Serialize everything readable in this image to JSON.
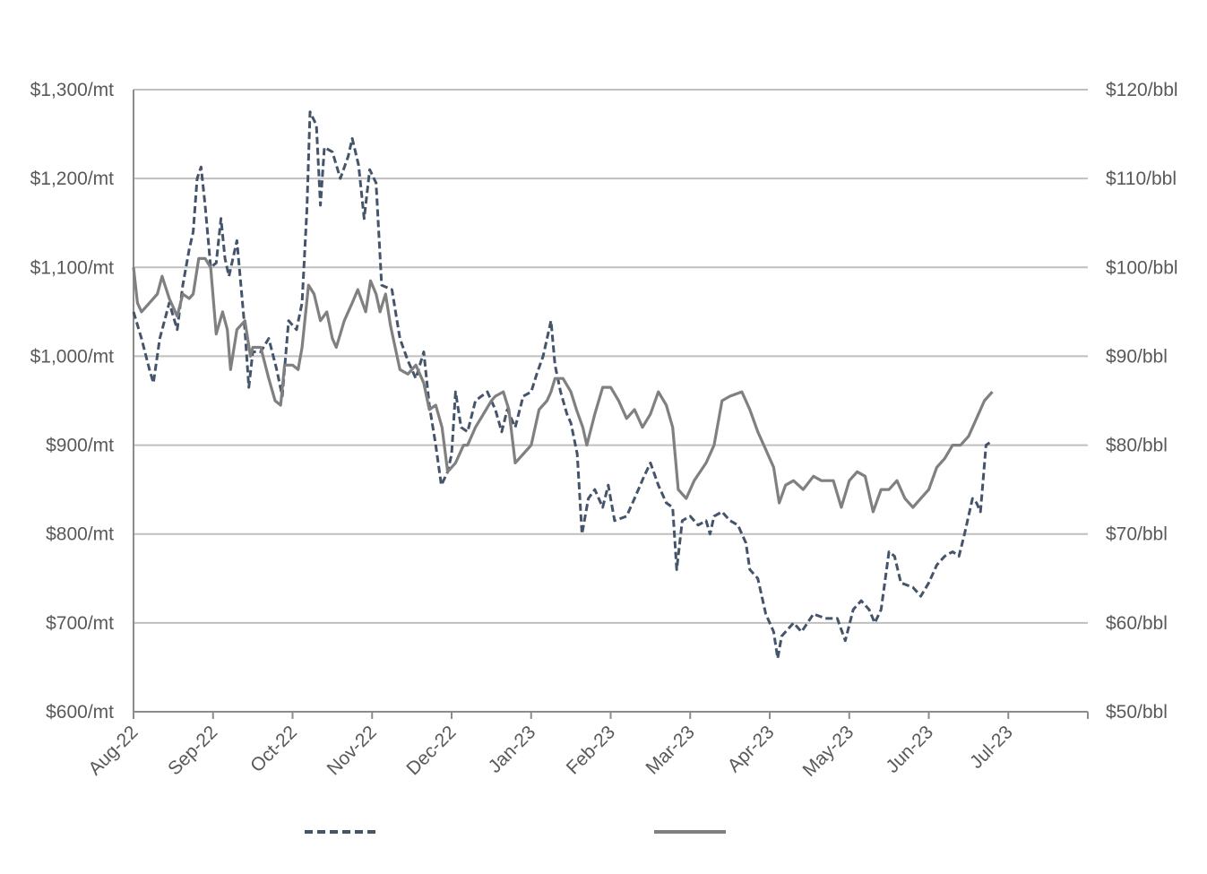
{
  "chart_data": {
    "type": "line",
    "title": "",
    "xlabel": "",
    "ylabel_left": "",
    "ylabel_right": "",
    "grid": true,
    "legend_position": "bottom",
    "x_ticks": [
      "Aug-22",
      "Sep-22",
      "Oct-22",
      "Nov-22",
      "Dec-22",
      "Jan-23",
      "Feb-23",
      "Mar-23",
      "Apr-23",
      "May-23",
      "Jun-23",
      "Jul-23"
    ],
    "x_range": [
      0,
      12
    ],
    "y_left": {
      "ticks": [
        "$600/mt",
        "$700/mt",
        "$800/mt",
        "$900/mt",
        "$1,000/mt",
        "$1,100/mt",
        "$1,200/mt",
        "$1,300/mt"
      ],
      "range": [
        600,
        1300
      ]
    },
    "y_right": {
      "ticks": [
        "$50/bbl",
        "$60/bbl",
        "$70/bbl",
        "$80/bbl",
        "$90/bbl",
        "$100/bbl",
        "$110/bbl",
        "$120/bbl"
      ],
      "range": [
        50,
        120
      ]
    },
    "series": [
      {
        "axis": "left",
        "style": "dashed",
        "color": "#44546a",
        "points": [
          [
            0.0,
            1050
          ],
          [
            0.1,
            1020
          ],
          [
            0.2,
            985
          ],
          [
            0.25,
            970
          ],
          [
            0.33,
            1020
          ],
          [
            0.45,
            1060
          ],
          [
            0.55,
            1030
          ],
          [
            0.62,
            1080
          ],
          [
            0.7,
            1120
          ],
          [
            0.75,
            1140
          ],
          [
            0.8,
            1200
          ],
          [
            0.85,
            1213
          ],
          [
            0.9,
            1170
          ],
          [
            0.97,
            1100
          ],
          [
            1.04,
            1105
          ],
          [
            1.1,
            1155
          ],
          [
            1.15,
            1110
          ],
          [
            1.2,
            1090
          ],
          [
            1.3,
            1130
          ],
          [
            1.4,
            1030
          ],
          [
            1.45,
            965
          ],
          [
            1.5,
            1005
          ],
          [
            1.6,
            1005
          ],
          [
            1.7,
            1020
          ],
          [
            1.8,
            985
          ],
          [
            1.87,
            955
          ],
          [
            1.95,
            1040
          ],
          [
            2.05,
            1030
          ],
          [
            2.12,
            1060
          ],
          [
            2.18,
            1165
          ],
          [
            2.22,
            1275
          ],
          [
            2.3,
            1260
          ],
          [
            2.35,
            1170
          ],
          [
            2.4,
            1235
          ],
          [
            2.5,
            1230
          ],
          [
            2.6,
            1200
          ],
          [
            2.7,
            1225
          ],
          [
            2.75,
            1245
          ],
          [
            2.83,
            1215
          ],
          [
            2.9,
            1155
          ],
          [
            2.97,
            1210
          ],
          [
            3.05,
            1195
          ],
          [
            3.12,
            1080
          ],
          [
            3.25,
            1075
          ],
          [
            3.35,
            1020
          ],
          [
            3.45,
            995
          ],
          [
            3.55,
            975
          ],
          [
            3.65,
            1005
          ],
          [
            3.72,
            945
          ],
          [
            3.8,
            900
          ],
          [
            3.87,
            855
          ],
          [
            3.95,
            870
          ],
          [
            4.0,
            890
          ],
          [
            4.05,
            960
          ],
          [
            4.12,
            920
          ],
          [
            4.2,
            915
          ],
          [
            4.3,
            950
          ],
          [
            4.45,
            960
          ],
          [
            4.55,
            940
          ],
          [
            4.63,
            915
          ],
          [
            4.7,
            940
          ],
          [
            4.8,
            920
          ],
          [
            4.9,
            955
          ],
          [
            5.0,
            960
          ],
          [
            5.07,
            980
          ],
          [
            5.15,
            1000
          ],
          [
            5.25,
            1040
          ],
          [
            5.3,
            990
          ],
          [
            5.37,
            960
          ],
          [
            5.45,
            935
          ],
          [
            5.5,
            925
          ],
          [
            5.58,
            890
          ],
          [
            5.64,
            800
          ],
          [
            5.72,
            840
          ],
          [
            5.8,
            850
          ],
          [
            5.9,
            830
          ],
          [
            5.97,
            855
          ],
          [
            6.05,
            815
          ],
          [
            6.2,
            820
          ],
          [
            6.3,
            840
          ],
          [
            6.42,
            865
          ],
          [
            6.5,
            880
          ],
          [
            6.6,
            855
          ],
          [
            6.7,
            835
          ],
          [
            6.78,
            830
          ],
          [
            6.83,
            760
          ],
          [
            6.9,
            815
          ],
          [
            7.0,
            820
          ],
          [
            7.1,
            810
          ],
          [
            7.2,
            815
          ],
          [
            7.25,
            800
          ],
          [
            7.3,
            820
          ],
          [
            7.4,
            825
          ],
          [
            7.5,
            815
          ],
          [
            7.6,
            810
          ],
          [
            7.7,
            790
          ],
          [
            7.75,
            760
          ],
          [
            7.85,
            750
          ],
          [
            7.95,
            710
          ],
          [
            8.05,
            690
          ],
          [
            8.1,
            660
          ],
          [
            8.15,
            685
          ],
          [
            8.3,
            700
          ],
          [
            8.4,
            690
          ],
          [
            8.55,
            710
          ],
          [
            8.7,
            705
          ],
          [
            8.85,
            705
          ],
          [
            8.95,
            680
          ],
          [
            9.05,
            715
          ],
          [
            9.15,
            725
          ],
          [
            9.25,
            715
          ],
          [
            9.32,
            700
          ],
          [
            9.4,
            715
          ],
          [
            9.5,
            780
          ],
          [
            9.57,
            775
          ],
          [
            9.65,
            745
          ],
          [
            9.8,
            740
          ],
          [
            9.9,
            730
          ],
          [
            10.0,
            745
          ],
          [
            10.1,
            765
          ],
          [
            10.2,
            775
          ],
          [
            10.3,
            780
          ],
          [
            10.38,
            775
          ],
          [
            10.45,
            800
          ],
          [
            10.55,
            840
          ],
          [
            10.6,
            835
          ],
          [
            10.65,
            825
          ],
          [
            10.72,
            900
          ],
          [
            10.8,
            905
          ]
        ]
      },
      {
        "axis": "right",
        "style": "solid",
        "color": "#808080",
        "points": [
          [
            0.0,
            100
          ],
          [
            0.05,
            96
          ],
          [
            0.1,
            95
          ],
          [
            0.2,
            96
          ],
          [
            0.3,
            97
          ],
          [
            0.36,
            99
          ],
          [
            0.45,
            96.5
          ],
          [
            0.55,
            94.5
          ],
          [
            0.62,
            97
          ],
          [
            0.7,
            96.5
          ],
          [
            0.75,
            97
          ],
          [
            0.82,
            101
          ],
          [
            0.9,
            101
          ],
          [
            0.97,
            100
          ],
          [
            1.04,
            92.5
          ],
          [
            1.12,
            95
          ],
          [
            1.18,
            93
          ],
          [
            1.22,
            88.5
          ],
          [
            1.3,
            93
          ],
          [
            1.4,
            94
          ],
          [
            1.47,
            90
          ],
          [
            1.5,
            91
          ],
          [
            1.6,
            91
          ],
          [
            1.7,
            87.5
          ],
          [
            1.78,
            85
          ],
          [
            1.85,
            84.5
          ],
          [
            1.9,
            89
          ],
          [
            2.0,
            89
          ],
          [
            2.07,
            88.5
          ],
          [
            2.12,
            91
          ],
          [
            2.2,
            98
          ],
          [
            2.27,
            97
          ],
          [
            2.35,
            94
          ],
          [
            2.43,
            95
          ],
          [
            2.5,
            92
          ],
          [
            2.55,
            91
          ],
          [
            2.65,
            94
          ],
          [
            2.75,
            96
          ],
          [
            2.82,
            97.5
          ],
          [
            2.92,
            95
          ],
          [
            2.98,
            98.5
          ],
          [
            3.05,
            97
          ],
          [
            3.1,
            95
          ],
          [
            3.17,
            97
          ],
          [
            3.23,
            93.5
          ],
          [
            3.35,
            88.5
          ],
          [
            3.45,
            88
          ],
          [
            3.55,
            89
          ],
          [
            3.65,
            87
          ],
          [
            3.72,
            84
          ],
          [
            3.8,
            84.5
          ],
          [
            3.88,
            82
          ],
          [
            3.95,
            77
          ],
          [
            4.05,
            78
          ],
          [
            4.15,
            80
          ],
          [
            4.2,
            80
          ],
          [
            4.3,
            82
          ],
          [
            4.4,
            83.5
          ],
          [
            4.5,
            85
          ],
          [
            4.55,
            85.5
          ],
          [
            4.65,
            86
          ],
          [
            4.72,
            84
          ],
          [
            4.8,
            78
          ],
          [
            4.9,
            79
          ],
          [
            5.0,
            80
          ],
          [
            5.1,
            84
          ],
          [
            5.2,
            85
          ],
          [
            5.25,
            86
          ],
          [
            5.3,
            87.5
          ],
          [
            5.4,
            87.5
          ],
          [
            5.5,
            86
          ],
          [
            5.57,
            84
          ],
          [
            5.65,
            82
          ],
          [
            5.7,
            80
          ],
          [
            5.8,
            83.5
          ],
          [
            5.9,
            86.5
          ],
          [
            6.0,
            86.5
          ],
          [
            6.1,
            85
          ],
          [
            6.2,
            83
          ],
          [
            6.3,
            84
          ],
          [
            6.4,
            82
          ],
          [
            6.5,
            83.5
          ],
          [
            6.6,
            86
          ],
          [
            6.7,
            84.5
          ],
          [
            6.78,
            82
          ],
          [
            6.85,
            75
          ],
          [
            6.95,
            74
          ],
          [
            7.05,
            76
          ],
          [
            7.2,
            78
          ],
          [
            7.3,
            80
          ],
          [
            7.4,
            85
          ],
          [
            7.5,
            85.5
          ],
          [
            7.65,
            86
          ],
          [
            7.75,
            84
          ],
          [
            7.85,
            81.5
          ],
          [
            7.95,
            79.5
          ],
          [
            8.05,
            77.5
          ],
          [
            8.12,
            73.5
          ],
          [
            8.2,
            75.5
          ],
          [
            8.3,
            76
          ],
          [
            8.42,
            75
          ],
          [
            8.55,
            76.5
          ],
          [
            8.65,
            76
          ],
          [
            8.8,
            76
          ],
          [
            8.9,
            73
          ],
          [
            9.0,
            76
          ],
          [
            9.1,
            77
          ],
          [
            9.2,
            76.5
          ],
          [
            9.3,
            72.5
          ],
          [
            9.4,
            75
          ],
          [
            9.5,
            75
          ],
          [
            9.6,
            76
          ],
          [
            9.7,
            74
          ],
          [
            9.8,
            73
          ],
          [
            9.9,
            74
          ],
          [
            10.0,
            75
          ],
          [
            10.1,
            77.5
          ],
          [
            10.2,
            78.5
          ],
          [
            10.3,
            80
          ],
          [
            10.4,
            80
          ],
          [
            10.5,
            81
          ],
          [
            10.6,
            83
          ],
          [
            10.7,
            85
          ],
          [
            10.8,
            86
          ]
        ]
      }
    ]
  }
}
